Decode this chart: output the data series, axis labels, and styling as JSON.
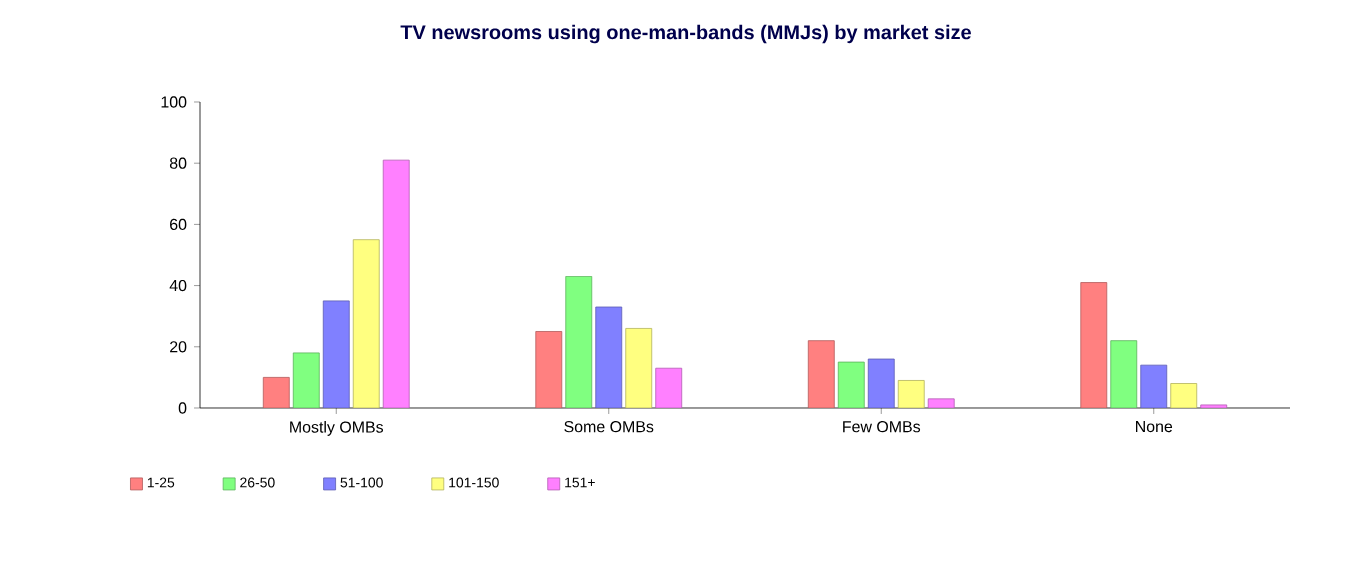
{
  "chart_data": {
    "type": "bar",
    "title": "TV newsrooms using one-man-bands (MMJs) by market size",
    "categories": [
      "Mostly OMBs",
      "Some OMBs",
      "Few OMBs",
      "None"
    ],
    "series": [
      {
        "name": "1-25",
        "color": "#ff8080",
        "values": [
          10,
          25,
          22,
          41
        ]
      },
      {
        "name": "26-50",
        "color": "#80ff80",
        "values": [
          18,
          43,
          15,
          22
        ]
      },
      {
        "name": "51-100",
        "color": "#8080ff",
        "values": [
          35,
          33,
          16,
          14
        ]
      },
      {
        "name": "101-150",
        "color": "#ffff80",
        "values": [
          55,
          26,
          9,
          8
        ]
      },
      {
        "name": "151+",
        "color": "#ff80ff",
        "values": [
          81,
          13,
          3,
          1
        ]
      }
    ],
    "ylim": [
      0,
      100
    ],
    "yticks": [
      0,
      20,
      40,
      60,
      80,
      100
    ],
    "grid": false,
    "legend": "bottom left"
  }
}
